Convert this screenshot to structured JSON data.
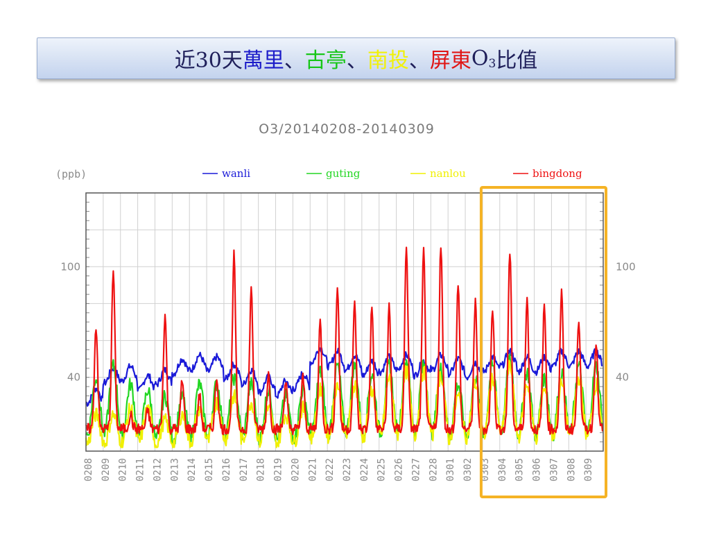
{
  "slide": {
    "title_parts": [
      {
        "text": "近30天",
        "color": "#1f1f5a"
      },
      {
        "text": "萬里",
        "color": "#1c1cc9"
      },
      {
        "text": "、",
        "color": "#1f1f5a"
      },
      {
        "text": "古亭",
        "color": "#17c617"
      },
      {
        "text": "、",
        "color": "#1f1f5a"
      },
      {
        "text": "南投",
        "color": "#f1f10a"
      },
      {
        "text": "、",
        "color": "#1f1f5a"
      },
      {
        "text": "屏東",
        "color": "#e01515"
      },
      {
        "text": " O",
        "color": "#1f1f5a"
      }
    ],
    "title_sub": "3",
    "title_tail": " 比值"
  },
  "highlight_color": "#f5b325",
  "chart_data": {
    "type": "line",
    "title": "O3/20140208-20140309",
    "ylabel": "(ppb)",
    "ylim": [
      0,
      140
    ],
    "yticks": [
      40,
      100
    ],
    "grid": true,
    "legend_position": "top",
    "categories": [
      "0208",
      "0209",
      "0210",
      "0211",
      "0212",
      "0213",
      "0214",
      "0215",
      "0216",
      "0217",
      "0218",
      "0219",
      "0220",
      "0221",
      "0222",
      "0223",
      "0224",
      "0225",
      "0226",
      "0227",
      "0228",
      "0301",
      "0302",
      "0303",
      "0304",
      "0305",
      "0306",
      "0307",
      "0308",
      "0309"
    ],
    "highlight_range": [
      "0303",
      "0309"
    ],
    "series": [
      {
        "name": "wanli",
        "color": "#1a1ad8",
        "daily_mean": [
          30,
          41,
          42,
          37,
          40,
          46,
          48,
          47,
          43,
          40,
          36,
          34,
          38,
          52,
          50,
          48,
          45,
          47,
          48,
          45,
          48,
          46,
          44,
          47,
          50,
          47,
          47,
          50,
          50,
          50
        ]
      },
      {
        "name": "guting",
        "color": "#22d622",
        "daily_mean": [
          24,
          28,
          22,
          20,
          18,
          18,
          22,
          22,
          24,
          22,
          20,
          18,
          20,
          26,
          28,
          28,
          25,
          28,
          30,
          28,
          27,
          22,
          24,
          28,
          30,
          26,
          24,
          26,
          28,
          28
        ]
      },
      {
        "name": "nanlou",
        "color": "#f0f000",
        "daily_mean": [
          12,
          12,
          14,
          14,
          10,
          12,
          14,
          16,
          18,
          16,
          14,
          12,
          14,
          20,
          22,
          22,
          20,
          24,
          26,
          26,
          25,
          18,
          22,
          24,
          28,
          22,
          20,
          22,
          24,
          22
        ]
      },
      {
        "name": "bingdong",
        "color": "#ee1111",
        "daily_peak": [
          68,
          98,
          20,
          22,
          74,
          38,
          30,
          40,
          106,
          88,
          42,
          38,
          40,
          70,
          90,
          80,
          78,
          78,
          112,
          108,
          112,
          90,
          80,
          78,
          108,
          82,
          78,
          86,
          72,
          60
        ]
      }
    ]
  }
}
